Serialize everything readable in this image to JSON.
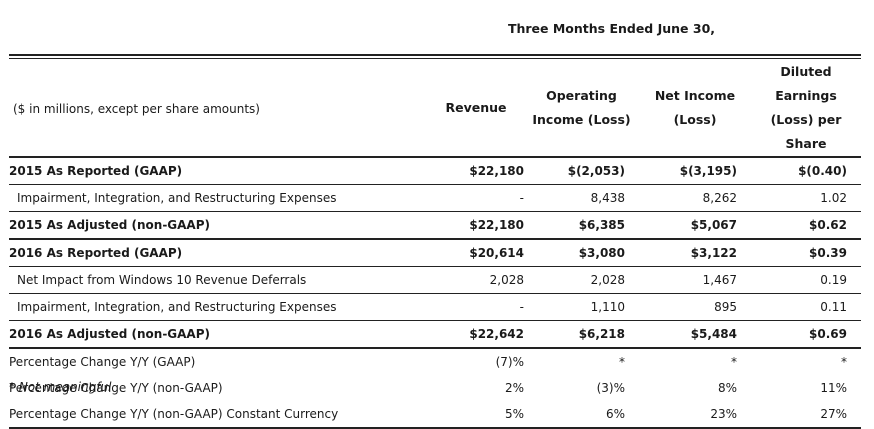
{
  "header": {
    "period": "Three Months Ended June 30,",
    "label_col": "($ in millions, except per share amounts)",
    "col_revenue": "Revenue",
    "col_operating_line1": "Operating",
    "col_operating_line2": "Income (Loss)",
    "col_netincome_line1": "Net Income",
    "col_netincome_line2": "(Loss)",
    "col_eps_line1": "Diluted Earnings",
    "col_eps_line2": "(Loss) per Share"
  },
  "rows": [
    {
      "label": "2015 As Reported (GAAP)",
      "revenue": "$22,180",
      "operating": "$(2,053)",
      "net_income": "$(3,195)",
      "eps": "$(0.40)"
    },
    {
      "label": "Impairment, Integration, and Restructuring Expenses",
      "revenue": "-",
      "operating": "8,438",
      "net_income": "8,262",
      "eps": "1.02"
    },
    {
      "label": "2015 As Adjusted (non-GAAP)",
      "revenue": "$22,180",
      "operating": "$6,385",
      "net_income": "$5,067",
      "eps": "$0.62"
    },
    {
      "label": "2016 As Reported (GAAP)",
      "revenue": "$20,614",
      "operating": "$3,080",
      "net_income": "$3,122",
      "eps": "$0.39"
    },
    {
      "label": "Net Impact from Windows 10 Revenue Deferrals",
      "revenue": "2,028",
      "operating": "2,028",
      "net_income": "1,467",
      "eps": "0.19"
    },
    {
      "label": "Impairment, Integration, and Restructuring Expenses",
      "revenue": "-",
      "operating": "1,110",
      "net_income": "895",
      "eps": "0.11"
    },
    {
      "label": "2016 As Adjusted (non-GAAP)",
      "revenue": "$22,642",
      "operating": "$6,218",
      "net_income": "$5,484",
      "eps": "$0.69"
    },
    {
      "label": "Percentage Change Y/Y (GAAP)",
      "revenue": "(7)%",
      "operating": "*",
      "net_income": "*",
      "eps": "*"
    },
    {
      "label": "Percentage Change Y/Y (non-GAAP)",
      "revenue": "2%",
      "operating": "(3)%",
      "net_income": "8%",
      "eps": "11%"
    },
    {
      "label": "Percentage Change Y/Y (non-GAAP) Constant Currency",
      "revenue": "5%",
      "operating": "6%",
      "net_income": "23%",
      "eps": "27%"
    }
  ],
  "footnote": "* Not meaningful"
}
